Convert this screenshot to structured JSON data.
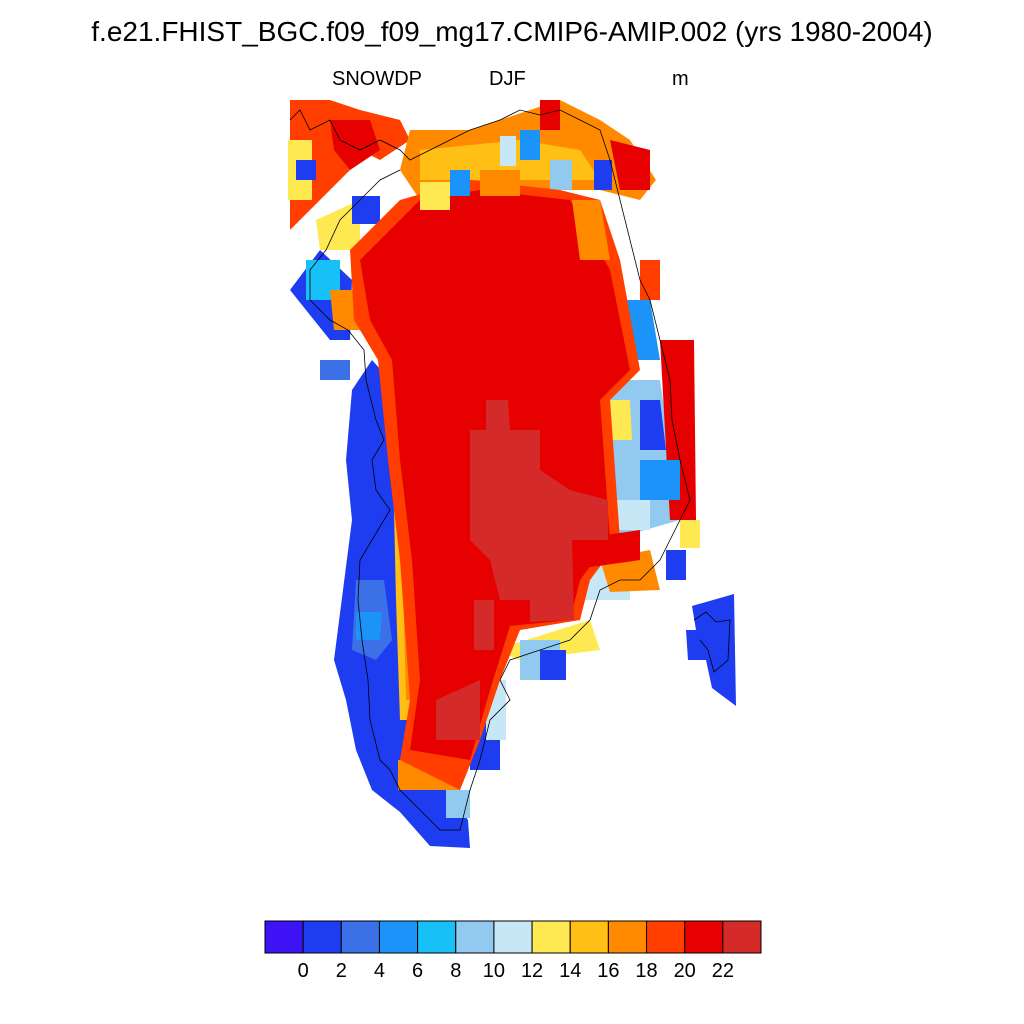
{
  "title": "f.e21.FHIST_BGC.f09_f09_mg17.CMIP6-AMIP.002 (yrs 1980-2004)",
  "variable": "SNOWDP",
  "season": "DJF",
  "units": "m",
  "colorbar": {
    "colors": [
      "#3d12f4",
      "#1f3df0",
      "#3b70e6",
      "#1b93f8",
      "#17c0f6",
      "#92c9ef",
      "#c7e6f6",
      "#ffe952",
      "#ffbf14",
      "#ff8a00",
      "#ff3e00",
      "#e60000",
      "#d42a2a"
    ],
    "tick_labels": [
      "0",
      "2",
      "4",
      "6",
      "8",
      "10",
      "12",
      "14",
      "16",
      "18",
      "20",
      "22"
    ]
  },
  "map_regions": [
    {
      "name": "greenland",
      "level": "mixed"
    },
    {
      "name": "iceland",
      "level": 2
    }
  ]
}
